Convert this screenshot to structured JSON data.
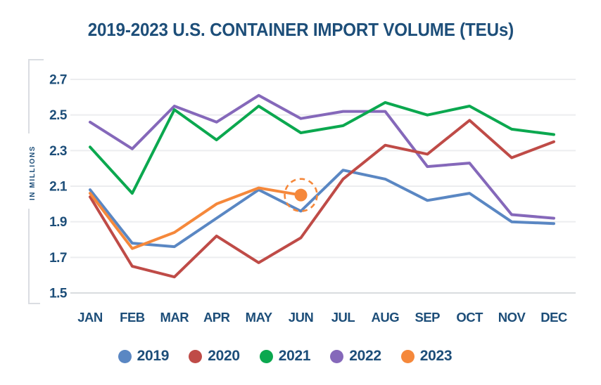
{
  "page": {
    "background": "#ffffff"
  },
  "chart_data": {
    "type": "line",
    "title": "2019-2023 U.S. CONTAINER IMPORT VOLUME (TEUs)",
    "ylabel": "IN MILLIONS",
    "xlabel": "",
    "categories": [
      "JAN",
      "FEB",
      "MAR",
      "APR",
      "MAY",
      "JUN",
      "JUL",
      "AUG",
      "SEP",
      "OCT",
      "NOV",
      "DEC"
    ],
    "yticks": [
      2.7,
      2.5,
      2.3,
      2.1,
      1.9,
      1.7,
      1.5
    ],
    "ylim": [
      1.5,
      2.7
    ],
    "grid": true,
    "legend_position": "bottom",
    "text_color": "#1D4E79",
    "grid_color": "#ECEDEF",
    "baseline_grid_color": "#D9DCDF",
    "axis_bracket_color": "#DADDE2",
    "series": [
      {
        "name": "2019",
        "color": "#5A87C3",
        "z": 1,
        "values": [
          2.08,
          1.78,
          1.76,
          1.92,
          2.08,
          1.96,
          2.19,
          2.14,
          2.02,
          2.06,
          1.9,
          1.89
        ]
      },
      {
        "name": "2020",
        "color": "#BF4B47",
        "z": 4,
        "values": [
          2.04,
          1.65,
          1.59,
          1.82,
          1.67,
          1.81,
          2.14,
          2.33,
          2.28,
          2.47,
          2.26,
          2.35
        ]
      },
      {
        "name": "2021",
        "color": "#0BA84F",
        "z": 3,
        "values": [
          2.32,
          2.06,
          2.53,
          2.36,
          2.55,
          2.4,
          2.44,
          2.57,
          2.5,
          2.55,
          2.42,
          2.39
        ]
      },
      {
        "name": "2022",
        "color": "#8568BA",
        "z": 2,
        "values": [
          2.46,
          2.31,
          2.55,
          2.46,
          2.61,
          2.48,
          2.52,
          2.52,
          2.21,
          2.23,
          1.94,
          1.92
        ]
      },
      {
        "name": "2023",
        "color": "#F5883B",
        "z": 5,
        "values": [
          2.06,
          1.75,
          1.84,
          2.0,
          2.09,
          2.05
        ],
        "end_marker": {
          "month": "JUN",
          "value": 2.05,
          "style": "dot-with-dashed-ring"
        }
      }
    ]
  }
}
